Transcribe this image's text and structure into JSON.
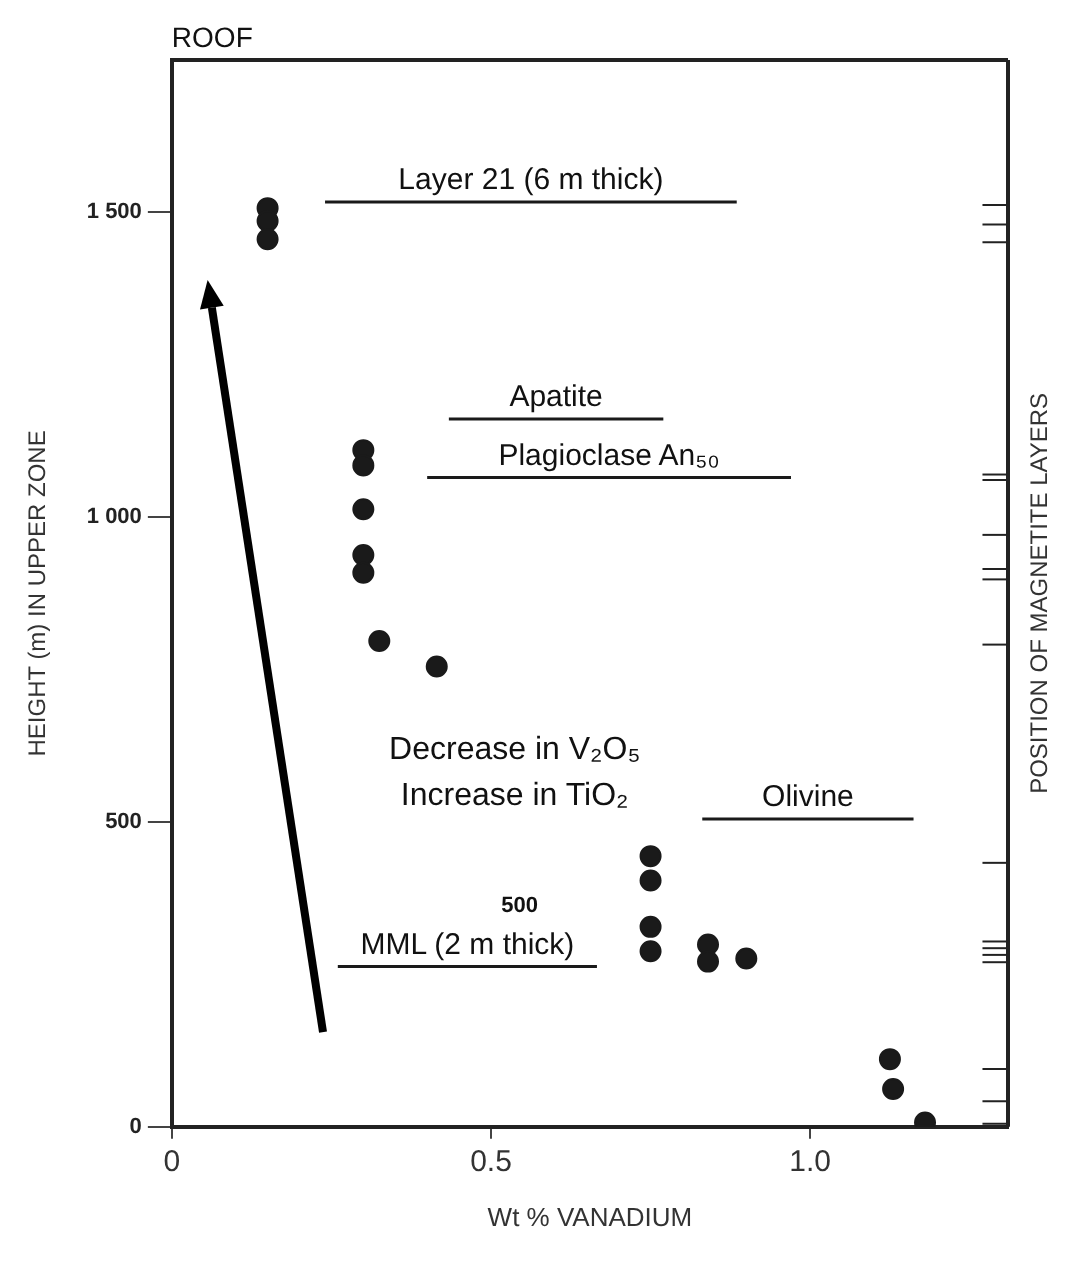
{
  "chart_data": {
    "type": "scatter",
    "xlabel": "Wt % VANADIUM",
    "ylabel": "HEIGHT (m) IN UPPER ZONE",
    "y2label": "POSITION OF MAGNETITE LAYERS",
    "xlim": [
      0,
      1.31
    ],
    "xticks": [
      0,
      0.5,
      {
        "value": 1,
        "label": "1.0"
      }
    ],
    "ylim": [
      0,
      1750
    ],
    "yticks": [
      0,
      500,
      {
        "value": 1000,
        "label": "1 000"
      },
      {
        "value": 1500,
        "label": "1 500"
      }
    ],
    "marker": "circle",
    "grid": false,
    "legend": false,
    "series": [
      {
        "type": "scatter",
        "color": "#1a1a1a",
        "x": [
          0.15,
          0.15,
          0.15,
          0.3,
          0.3,
          0.3,
          0.3,
          0.3,
          0.325,
          0.415,
          0.75,
          0.75,
          0.75,
          0.75,
          0.84,
          0.84,
          0.9,
          1.125,
          1.13,
          1.18
        ],
        "values": [
          1507,
          1486,
          1456,
          1110,
          1085,
          1013,
          938,
          909,
          797,
          755,
          444,
          404,
          328,
          288,
          299,
          271,
          276,
          111,
          62,
          7
        ]
      },
      {
        "type": "line",
        "name": "Layer 21 (6 m thick)",
        "color": "#1a1a1a",
        "marker": "none",
        "x": [
          0.24,
          0.885
        ],
        "values": [
          1517,
          1517
        ]
      },
      {
        "type": "line",
        "name": "Apatite",
        "color": "#1a1a1a",
        "marker": "none",
        "x": [
          0.434,
          0.77
        ],
        "values": [
          1161,
          1161
        ]
      },
      {
        "type": "line",
        "name": "Plagioclase An₅₀",
        "color": "#1a1a1a",
        "marker": "none",
        "x": [
          0.4,
          0.97
        ],
        "values": [
          1065,
          1065
        ]
      },
      {
        "type": "line",
        "name": "Olivine",
        "color": "#1a1a1a",
        "marker": "none",
        "x": [
          0.831,
          1.162
        ],
        "values": [
          505,
          505
        ]
      },
      {
        "type": "line",
        "name": "MML (2 m thick)",
        "color": "#1a1a1a",
        "marker": "none",
        "x": [
          0.26,
          0.666
        ],
        "values": [
          263,
          263
        ]
      },
      {
        "type": "line",
        "color": "#222222",
        "marker": "none",
        "x": [
          1.27,
          1.31
        ],
        "values": [
          5,
          5
        ]
      },
      {
        "type": "line",
        "color": "#222222",
        "marker": "none",
        "x": [
          1.27,
          1.31
        ],
        "values": [
          42,
          42
        ]
      },
      {
        "type": "line",
        "color": "#222222",
        "marker": "none",
        "x": [
          1.27,
          1.31
        ],
        "values": [
          95,
          95
        ]
      },
      {
        "type": "line",
        "color": "#222222",
        "marker": "none",
        "x": [
          1.27,
          1.31
        ],
        "values": [
          270,
          270
        ]
      },
      {
        "type": "line",
        "color": "#222222",
        "marker": "none",
        "x": [
          1.27,
          1.31
        ],
        "values": [
          282,
          282
        ]
      },
      {
        "type": "line",
        "color": "#222222",
        "marker": "none",
        "x": [
          1.27,
          1.31
        ],
        "values": [
          293,
          293
        ]
      },
      {
        "type": "line",
        "color": "#222222",
        "marker": "none",
        "x": [
          1.27,
          1.31
        ],
        "values": [
          304,
          304
        ]
      },
      {
        "type": "line",
        "color": "#222222",
        "marker": "none",
        "x": [
          1.27,
          1.31
        ],
        "values": [
          433,
          433
        ]
      },
      {
        "type": "line",
        "color": "#222222",
        "marker": "none",
        "x": [
          1.27,
          1.31
        ],
        "values": [
          791,
          791
        ]
      },
      {
        "type": "line",
        "color": "#222222",
        "marker": "none",
        "x": [
          1.27,
          1.31
        ],
        "values": [
          898,
          898
        ]
      },
      {
        "type": "line",
        "color": "#222222",
        "marker": "none",
        "x": [
          1.27,
          1.31
        ],
        "values": [
          915,
          915
        ]
      },
      {
        "type": "line",
        "color": "#222222",
        "marker": "none",
        "x": [
          1.27,
          1.31
        ],
        "values": [
          971,
          971
        ]
      },
      {
        "type": "line",
        "color": "#222222",
        "marker": "none",
        "x": [
          1.27,
          1.31
        ],
        "values": [
          1061,
          1061
        ]
      },
      {
        "type": "line",
        "color": "#222222",
        "marker": "none",
        "x": [
          1.27,
          1.31
        ],
        "values": [
          1070,
          1070
        ]
      },
      {
        "type": "line",
        "color": "#222222",
        "marker": "none",
        "x": [
          1.27,
          1.31
        ],
        "values": [
          1451,
          1451
        ]
      },
      {
        "type": "line",
        "color": "#222222",
        "marker": "none",
        "x": [
          1.27,
          1.31
        ],
        "values": [
          1480,
          1480
        ]
      },
      {
        "type": "line",
        "color": "#222222",
        "marker": "none",
        "x": [
          1.27,
          1.31
        ],
        "values": [
          1512,
          1512
        ]
      }
    ],
    "annotations": [
      "ROOF",
      "Decrease in V₂O₅",
      "Increase in TiO₂",
      "500"
    ]
  }
}
